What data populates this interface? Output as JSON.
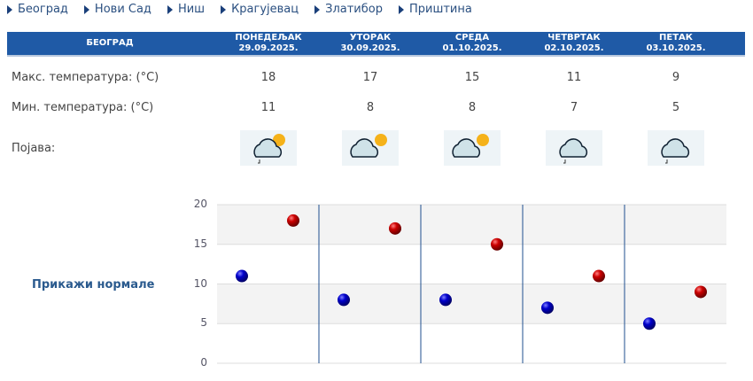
{
  "nav": [
    "Београд",
    "Нови Сад",
    "Ниш",
    "Крагујевац",
    "Златибор",
    "Приштина"
  ],
  "header": {
    "city": "БЕОГРАД",
    "days": [
      {
        "name": "ПОНЕДЕЉАК",
        "date": "29.09.2025."
      },
      {
        "name": "УТОРАК",
        "date": "30.09.2025."
      },
      {
        "name": "СРЕДА",
        "date": "01.10.2025."
      },
      {
        "name": "ЧЕТВРТАК",
        "date": "02.10.2025."
      },
      {
        "name": "ПЕТАК",
        "date": "03.10.2025."
      }
    ]
  },
  "rows": {
    "max_label": "Макс. температура: (°C)",
    "min_label": "Мин. температура: (°C)",
    "phenomenon_label": "Појава:"
  },
  "max": [
    "18",
    "17",
    "15",
    "11",
    "9"
  ],
  "min": [
    "11",
    "8",
    "8",
    "7",
    "5"
  ],
  "icons": [
    "partly-cloudy-rain-icon",
    "sun-cloud-icon",
    "sun-cloud-icon",
    "cloud-rain-icon",
    "cloud-rain-icon"
  ],
  "legend_link": "Прикажи нормале",
  "colors": {
    "header": "#1f5aa6",
    "max": "#cc0000",
    "min": "#0000cc"
  },
  "chart_data": {
    "type": "scatter",
    "categories": [
      "29.09.2025.",
      "30.09.2025.",
      "01.10.2025.",
      "02.10.2025.",
      "03.10.2025."
    ],
    "series": [
      {
        "values": [
          11,
          8,
          8,
          7,
          5
        ],
        "color": "#0000cc"
      },
      {
        "values": [
          18,
          17,
          15,
          11,
          9
        ],
        "color": "#cc0000"
      }
    ],
    "ylim": [
      0,
      20
    ],
    "yticks": [
      "0",
      "5",
      "10",
      "15",
      "20"
    ],
    "grid": true
  }
}
